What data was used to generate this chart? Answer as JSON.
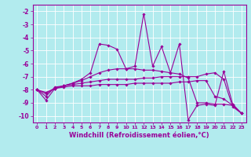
{
  "background_color": "#b2ebee",
  "grid_color": "#ffffff",
  "line_color": "#990099",
  "marker": "D",
  "markersize": 1.8,
  "linewidth": 0.8,
  "xlabel": "Windchill (Refroidissement éolien,°C)",
  "xlabel_fontsize": 6,
  "xlim": [
    -0.5,
    23.5
  ],
  "ylim": [
    -10.5,
    -1.5
  ],
  "xtick_vals": [
    0,
    1,
    2,
    3,
    4,
    5,
    6,
    7,
    8,
    9,
    10,
    11,
    12,
    13,
    14,
    15,
    16,
    17,
    18,
    19,
    20,
    21,
    22,
    23
  ],
  "xtick_labels": [
    "0",
    "1",
    "2",
    "3",
    "4",
    "5",
    "6",
    "7",
    "8",
    "9",
    "10",
    "11",
    "12",
    "13",
    "14",
    "15",
    "16",
    "17",
    "18",
    "19",
    "20",
    "21",
    "22",
    "23"
  ],
  "ytick_vals": [
    -2,
    -3,
    -4,
    -5,
    -6,
    -7,
    -8,
    -9,
    -10
  ],
  "ytick_labels": [
    "-2",
    "-3",
    "-4",
    "-5",
    "-6",
    "-7",
    "-8",
    "-9",
    "-10"
  ],
  "series_x": [
    0,
    1,
    2,
    3,
    4,
    5,
    6,
    7,
    8,
    9,
    10,
    11,
    12,
    13,
    14,
    15,
    16,
    17,
    18,
    19,
    20,
    21,
    22,
    23
  ],
  "series": [
    [
      -8.0,
      -8.8,
      -7.9,
      -7.7,
      -7.5,
      -7.2,
      -6.7,
      -4.5,
      -4.6,
      -4.9,
      -6.4,
      -6.2,
      -2.2,
      -6.2,
      -4.7,
      -6.7,
      -4.5,
      -10.3,
      -9.2,
      -9.1,
      -9.2,
      -6.6,
      -9.1,
      -9.8
    ],
    [
      -8.0,
      -8.5,
      -7.8,
      -7.7,
      -7.5,
      -7.3,
      -7.0,
      -6.7,
      -6.5,
      -6.4,
      -6.4,
      -6.4,
      -6.5,
      -6.5,
      -6.6,
      -6.7,
      -6.8,
      -7.1,
      -9.0,
      -9.0,
      -9.1,
      -9.1,
      -9.2,
      -9.8
    ],
    [
      -8.0,
      -8.3,
      -7.9,
      -7.7,
      -7.6,
      -7.5,
      -7.4,
      -7.3,
      -7.2,
      -7.2,
      -7.2,
      -7.2,
      -7.1,
      -7.1,
      -7.0,
      -7.0,
      -7.0,
      -7.0,
      -7.0,
      -6.8,
      -6.7,
      -7.2,
      -9.3,
      -9.8
    ],
    [
      -8.0,
      -8.2,
      -7.9,
      -7.8,
      -7.7,
      -7.7,
      -7.7,
      -7.6,
      -7.6,
      -7.6,
      -7.6,
      -7.5,
      -7.5,
      -7.5,
      -7.5,
      -7.5,
      -7.4,
      -7.4,
      -7.3,
      -7.3,
      -8.5,
      -8.7,
      -9.2,
      -9.8
    ]
  ]
}
